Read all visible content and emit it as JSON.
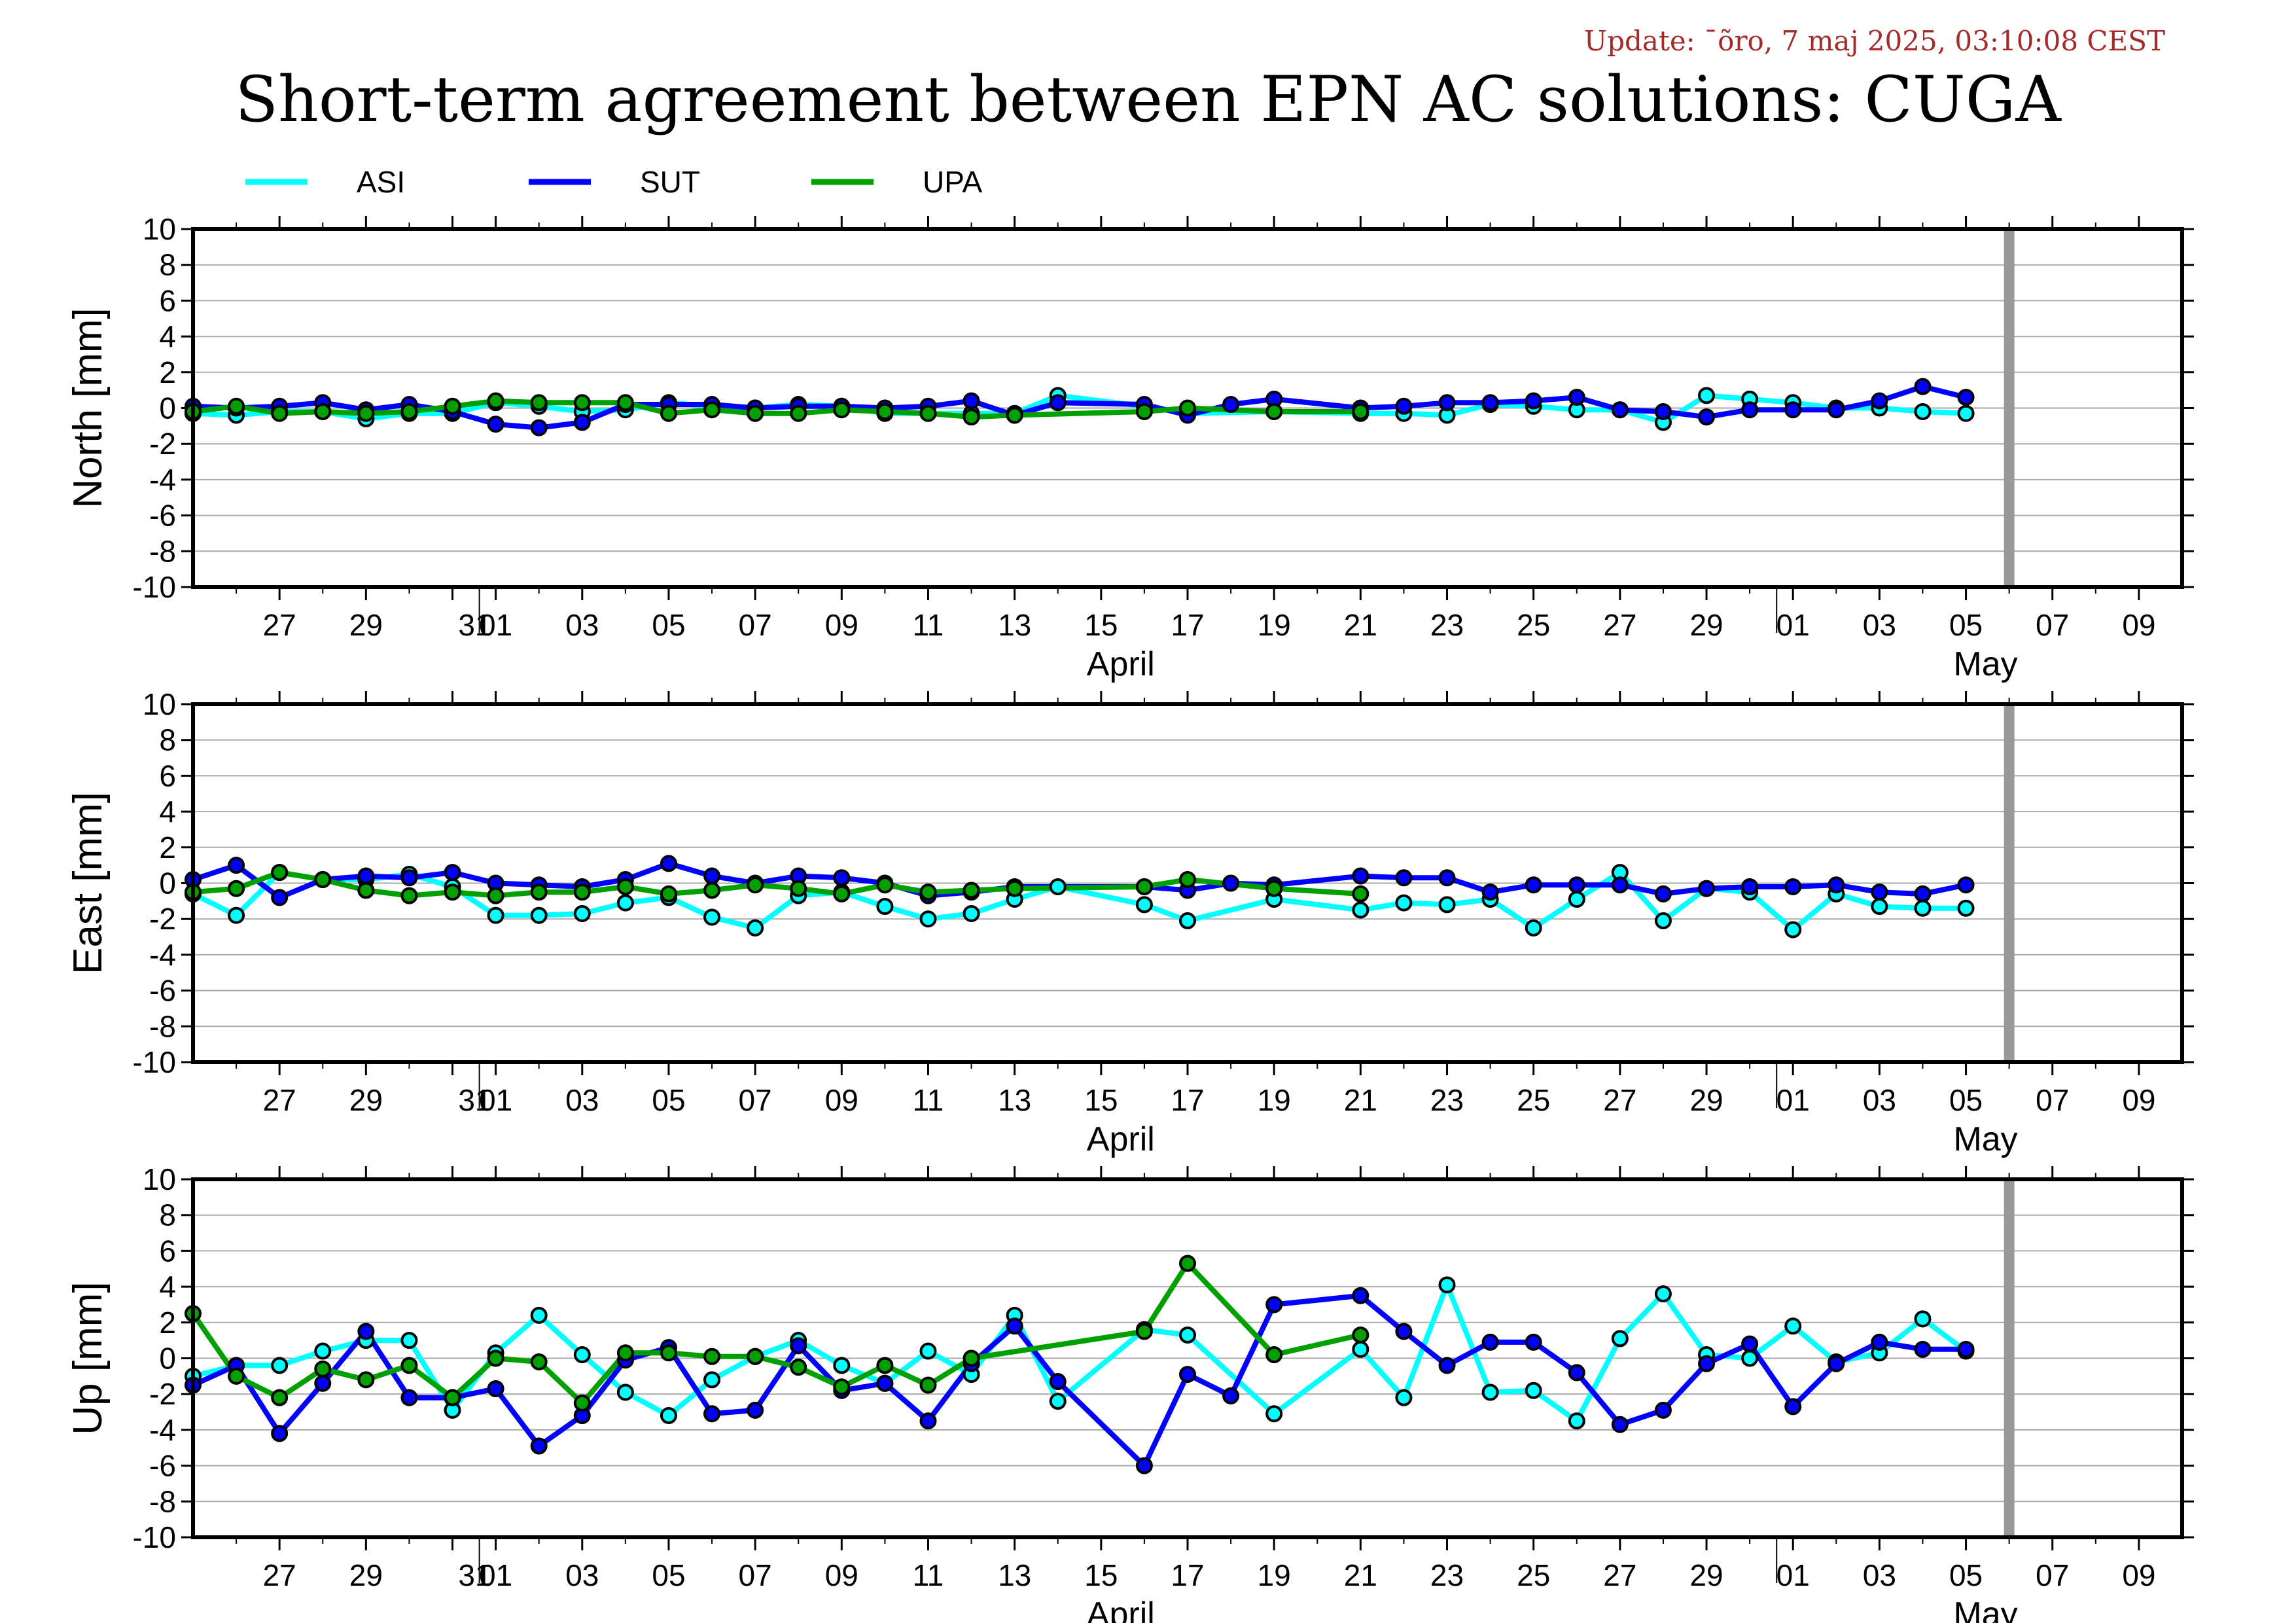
{
  "update_text": "Update: ¯õro, 7 maj 2025, 03:10:08 CEST",
  "title": "Short-term agreement between EPN AC solutions: CUGA",
  "legend": [
    {
      "name": "ASI",
      "color": "#00ffff"
    },
    {
      "name": "SUT",
      "color": "#0000ff"
    },
    {
      "name": "UPA",
      "color": "#00a000"
    }
  ],
  "chart_data": [
    {
      "type": "line",
      "ylabel": "North [mm]",
      "ylim": [
        -10,
        10
      ],
      "yticks": [
        "10",
        "8",
        "6",
        "4",
        "2",
        "0",
        "-2",
        "-4",
        "-6",
        "-8",
        "-10"
      ],
      "x_dates": {
        "ASI": [
          "2025-03-25",
          "2025-03-26",
          "2025-03-27",
          "2025-03-28",
          "2025-03-29",
          "2025-03-30",
          "2025-03-31",
          "2025-04-01",
          "2025-04-02",
          "2025-04-03",
          "2025-04-04",
          "2025-04-05",
          "2025-04-06",
          "2025-04-07",
          "2025-04-08",
          "2025-04-09",
          "2025-04-10",
          "2025-04-11",
          "2025-04-12",
          "2025-04-13",
          "2025-04-14",
          "2025-04-16",
          "2025-04-17",
          "2025-04-19",
          "2025-04-21",
          "2025-04-22",
          "2025-04-23",
          "2025-04-24",
          "2025-04-25",
          "2025-04-26",
          "2025-04-27",
          "2025-04-28",
          "2025-04-29",
          "2025-04-30",
          "2025-05-01",
          "2025-05-02",
          "2025-05-03",
          "2025-05-04",
          "2025-05-05"
        ],
        "SUT": [
          "2025-03-25",
          "2025-03-26",
          "2025-03-27",
          "2025-03-28",
          "2025-03-29",
          "2025-03-30",
          "2025-03-31",
          "2025-04-01",
          "2025-04-02",
          "2025-04-03",
          "2025-04-04",
          "2025-04-05",
          "2025-04-06",
          "2025-04-07",
          "2025-04-08",
          "2025-04-09",
          "2025-04-10",
          "2025-04-11",
          "2025-04-12",
          "2025-04-13",
          "2025-04-14",
          "2025-04-16",
          "2025-04-17",
          "2025-04-18",
          "2025-04-19",
          "2025-04-21",
          "2025-04-22",
          "2025-04-23",
          "2025-04-24",
          "2025-04-25",
          "2025-04-26",
          "2025-04-27",
          "2025-04-28",
          "2025-04-29",
          "2025-04-30",
          "2025-05-01",
          "2025-05-02",
          "2025-05-03",
          "2025-05-04",
          "2025-05-05"
        ],
        "UPA": [
          "2025-03-25",
          "2025-03-26",
          "2025-03-27",
          "2025-03-28",
          "2025-03-29",
          "2025-03-30",
          "2025-03-31",
          "2025-04-01",
          "2025-04-02",
          "2025-04-03",
          "2025-04-04",
          "2025-04-05",
          "2025-04-06",
          "2025-04-07",
          "2025-04-08",
          "2025-04-09",
          "2025-04-10",
          "2025-04-11",
          "2025-04-12",
          "2025-04-13",
          "2025-04-16",
          "2025-04-17",
          "2025-04-19",
          "2025-04-21"
        ]
      },
      "series": [
        {
          "name": "ASI",
          "values": [
            -0.3,
            -0.4,
            -0.2,
            -0.2,
            -0.6,
            -0.3,
            -0.3,
            0.3,
            0.1,
            -0.2,
            -0.1,
            0.3,
            0.1,
            0.0,
            0.2,
            0.1,
            -0.3,
            -0.3,
            -0.3,
            -0.3,
            0.7,
            0.1,
            -0.3,
            -0.2,
            -0.3,
            -0.3,
            -0.4,
            0.2,
            0.1,
            -0.1,
            -0.1,
            -0.8,
            0.7,
            0.5,
            0.3,
            0.0,
            0.0,
            -0.2,
            -0.3
          ]
        },
        {
          "name": "SUT",
          "values": [
            0.1,
            0.0,
            0.1,
            0.3,
            -0.1,
            0.2,
            -0.2,
            -0.9,
            -1.1,
            -0.8,
            0.2,
            0.2,
            0.2,
            0.0,
            0.1,
            0.1,
            0.0,
            0.1,
            0.4,
            -0.4,
            0.3,
            0.2,
            -0.4,
            0.2,
            0.5,
            0.0,
            0.1,
            0.3,
            0.3,
            0.4,
            0.6,
            -0.1,
            -0.2,
            -0.5,
            -0.1,
            -0.1,
            -0.1,
            0.4,
            1.2,
            0.6
          ]
        },
        {
          "name": "UPA",
          "values": [
            -0.2,
            0.1,
            -0.3,
            -0.2,
            -0.3,
            -0.2,
            0.1,
            0.4,
            0.3,
            0.3,
            0.3,
            -0.3,
            -0.1,
            -0.3,
            -0.3,
            -0.1,
            -0.2,
            -0.3,
            -0.5,
            -0.4,
            -0.2,
            0.0,
            -0.2,
            -0.2
          ]
        }
      ]
    },
    {
      "type": "line",
      "ylabel": "East [mm]",
      "ylim": [
        -10,
        10
      ],
      "yticks": [
        "10",
        "8",
        "6",
        "4",
        "2",
        "0",
        "-2",
        "-4",
        "-6",
        "-8",
        "-10"
      ],
      "x_dates": {
        "ASI": [
          "2025-03-25",
          "2025-03-26",
          "2025-03-27",
          "2025-03-28",
          "2025-03-29",
          "2025-03-30",
          "2025-03-31",
          "2025-04-01",
          "2025-04-02",
          "2025-04-03",
          "2025-04-04",
          "2025-04-05",
          "2025-04-06",
          "2025-04-07",
          "2025-04-08",
          "2025-04-09",
          "2025-04-10",
          "2025-04-11",
          "2025-04-12",
          "2025-04-13",
          "2025-04-14",
          "2025-04-16",
          "2025-04-17",
          "2025-04-19",
          "2025-04-21",
          "2025-04-22",
          "2025-04-23",
          "2025-04-24",
          "2025-04-25",
          "2025-04-26",
          "2025-04-27",
          "2025-04-28",
          "2025-04-29",
          "2025-04-30",
          "2025-05-01",
          "2025-05-02",
          "2025-05-03",
          "2025-05-04",
          "2025-05-05"
        ],
        "SUT": [
          "2025-03-25",
          "2025-03-26",
          "2025-03-27",
          "2025-03-28",
          "2025-03-29",
          "2025-03-30",
          "2025-03-31",
          "2025-04-01",
          "2025-04-02",
          "2025-04-03",
          "2025-04-04",
          "2025-04-05",
          "2025-04-06",
          "2025-04-07",
          "2025-04-08",
          "2025-04-09",
          "2025-04-10",
          "2025-04-11",
          "2025-04-12",
          "2025-04-13",
          "2025-04-16",
          "2025-04-17",
          "2025-04-18",
          "2025-04-19",
          "2025-04-21",
          "2025-04-22",
          "2025-04-23",
          "2025-04-24",
          "2025-04-25",
          "2025-04-26",
          "2025-04-27",
          "2025-04-28",
          "2025-04-29",
          "2025-04-30",
          "2025-05-01",
          "2025-05-02",
          "2025-05-03",
          "2025-05-04",
          "2025-05-05"
        ],
        "UPA": [
          "2025-03-25",
          "2025-03-26",
          "2025-03-27",
          "2025-03-28",
          "2025-03-29",
          "2025-03-30",
          "2025-03-31",
          "2025-04-01",
          "2025-04-02",
          "2025-04-03",
          "2025-04-04",
          "2025-04-05",
          "2025-04-06",
          "2025-04-07",
          "2025-04-08",
          "2025-04-09",
          "2025-04-10",
          "2025-04-11",
          "2025-04-12",
          "2025-04-13",
          "2025-04-16",
          "2025-04-17",
          "2025-04-19",
          "2025-04-21"
        ]
      },
      "series": [
        {
          "name": "ASI",
          "values": [
            -0.6,
            -1.8,
            0.6,
            0.2,
            0.2,
            0.5,
            -0.2,
            -1.8,
            -1.8,
            -1.7,
            -1.1,
            -0.8,
            -1.9,
            -2.5,
            -0.7,
            -0.5,
            -1.3,
            -2.0,
            -1.7,
            -0.9,
            -0.2,
            -1.2,
            -2.1,
            -0.9,
            -1.5,
            -1.1,
            -1.2,
            -0.9,
            -2.5,
            -0.9,
            0.6,
            -2.1,
            -0.3,
            -0.5,
            -2.6,
            -0.6,
            -1.3,
            -1.4,
            -1.4
          ]
        },
        {
          "name": "SUT",
          "values": [
            0.2,
            1.0,
            -0.8,
            0.2,
            0.4,
            0.3,
            0.6,
            0.0,
            -0.1,
            -0.2,
            0.2,
            1.1,
            0.4,
            0.0,
            0.4,
            0.3,
            0.0,
            -0.7,
            -0.5,
            -0.2,
            -0.2,
            -0.4,
            0.0,
            -0.1,
            0.4,
            0.3,
            0.3,
            -0.5,
            -0.1,
            -0.1,
            -0.1,
            -0.6,
            -0.3,
            -0.2,
            -0.2,
            -0.1,
            -0.5,
            -0.6,
            -0.1
          ]
        },
        {
          "name": "UPA",
          "values": [
            -0.5,
            -0.3,
            0.6,
            0.2,
            -0.4,
            -0.7,
            -0.5,
            -0.7,
            -0.5,
            -0.5,
            -0.2,
            -0.6,
            -0.4,
            -0.1,
            -0.3,
            -0.6,
            -0.1,
            -0.5,
            -0.4,
            -0.3,
            -0.2,
            0.2,
            -0.3,
            -0.6
          ]
        }
      ]
    },
    {
      "type": "line",
      "ylabel": "Up [mm]",
      "ylim": [
        -10,
        10
      ],
      "yticks": [
        "10",
        "8",
        "6",
        "4",
        "2",
        "0",
        "-2",
        "-4",
        "-6",
        "-8",
        "-10"
      ],
      "x_dates": {
        "ASI": [
          "2025-03-25",
          "2025-03-26",
          "2025-03-27",
          "2025-03-28",
          "2025-03-29",
          "2025-03-30",
          "2025-03-31",
          "2025-04-01",
          "2025-04-02",
          "2025-04-03",
          "2025-04-04",
          "2025-04-05",
          "2025-04-06",
          "2025-04-07",
          "2025-04-08",
          "2025-04-09",
          "2025-04-10",
          "2025-04-11",
          "2025-04-12",
          "2025-04-13",
          "2025-04-14",
          "2025-04-16",
          "2025-04-17",
          "2025-04-19",
          "2025-04-21",
          "2025-04-22",
          "2025-04-23",
          "2025-04-24",
          "2025-04-25",
          "2025-04-26",
          "2025-04-27",
          "2025-04-28",
          "2025-04-29",
          "2025-04-30",
          "2025-05-01",
          "2025-05-02",
          "2025-05-03",
          "2025-05-04",
          "2025-05-05"
        ],
        "SUT": [
          "2025-03-25",
          "2025-03-26",
          "2025-03-27",
          "2025-03-28",
          "2025-03-29",
          "2025-03-30",
          "2025-03-31",
          "2025-04-01",
          "2025-04-02",
          "2025-04-03",
          "2025-04-04",
          "2025-04-05",
          "2025-04-06",
          "2025-04-07",
          "2025-04-08",
          "2025-04-09",
          "2025-04-10",
          "2025-04-11",
          "2025-04-12",
          "2025-04-13",
          "2025-04-14",
          "2025-04-16",
          "2025-04-17",
          "2025-04-18",
          "2025-04-19",
          "2025-04-21",
          "2025-04-22",
          "2025-04-23",
          "2025-04-24",
          "2025-04-25",
          "2025-04-26",
          "2025-04-27",
          "2025-04-28",
          "2025-04-29",
          "2025-04-30",
          "2025-05-01",
          "2025-05-02",
          "2025-05-03",
          "2025-05-04",
          "2025-05-05"
        ],
        "UPA": [
          "2025-03-25",
          "2025-03-26",
          "2025-03-27",
          "2025-03-28",
          "2025-03-29",
          "2025-03-30",
          "2025-03-31",
          "2025-04-01",
          "2025-04-02",
          "2025-04-03",
          "2025-04-04",
          "2025-04-05",
          "2025-04-06",
          "2025-04-07",
          "2025-04-08",
          "2025-04-09",
          "2025-04-10",
          "2025-04-11",
          "2025-04-12",
          "2025-04-16",
          "2025-04-17",
          "2025-04-19",
          "2025-04-21"
        ]
      },
      "series": [
        {
          "name": "ASI",
          "values": [
            -1.0,
            -0.4,
            -0.4,
            0.4,
            1.0,
            1.0,
            -2.9,
            0.3,
            2.4,
            0.2,
            -1.9,
            -3.2,
            -1.2,
            0.1,
            1.0,
            -0.4,
            -1.4,
            0.4,
            -0.9,
            2.4,
            -2.4,
            1.6,
            1.3,
            -3.1,
            0.5,
            -2.2,
            4.1,
            -1.9,
            -1.8,
            -3.5,
            1.1,
            3.6,
            0.2,
            0.0,
            1.8,
            -0.2,
            0.3,
            2.2,
            0.4
          ]
        },
        {
          "name": "SUT",
          "values": [
            -1.5,
            -0.4,
            -4.2,
            -1.4,
            1.5,
            -2.2,
            -2.2,
            -1.7,
            -4.9,
            -3.2,
            -0.1,
            0.6,
            -3.1,
            -2.9,
            0.7,
            -1.8,
            -1.4,
            -3.5,
            -0.3,
            1.8,
            -1.3,
            -6.0,
            -0.9,
            -2.1,
            3.0,
            3.5,
            1.5,
            -0.4,
            0.9,
            0.9,
            -0.8,
            -3.7,
            -2.9,
            -0.3,
            0.8,
            -2.7,
            -0.3,
            0.9,
            0.5,
            0.5
          ]
        },
        {
          "name": "UPA",
          "values": [
            2.5,
            -1.0,
            -2.2,
            -0.6,
            -1.2,
            -0.4,
            -2.2,
            0.0,
            -0.2,
            -2.5,
            0.3,
            0.3,
            0.1,
            0.1,
            -0.5,
            -1.6,
            -0.4,
            -1.5,
            0.0,
            1.5,
            5.3,
            0.2,
            1.3
          ]
        }
      ]
    }
  ],
  "x_axis": {
    "range": [
      "2025-03-25",
      "2025-05-10"
    ],
    "ticks": [
      {
        "date": "2025-03-27",
        "label": "27"
      },
      {
        "date": "2025-03-29",
        "label": "29"
      },
      {
        "date": "2025-03-31",
        "label": "31"
      },
      {
        "date": "2025-04-01",
        "label": "01"
      },
      {
        "date": "2025-04-03",
        "label": "03"
      },
      {
        "date": "2025-04-05",
        "label": "05"
      },
      {
        "date": "2025-04-07",
        "label": "07"
      },
      {
        "date": "2025-04-09",
        "label": "09"
      },
      {
        "date": "2025-04-11",
        "label": "11"
      },
      {
        "date": "2025-04-13",
        "label": "13"
      },
      {
        "date": "2025-04-15",
        "label": "15"
      },
      {
        "date": "2025-04-17",
        "label": "17"
      },
      {
        "date": "2025-04-19",
        "label": "19"
      },
      {
        "date": "2025-04-21",
        "label": "21"
      },
      {
        "date": "2025-04-23",
        "label": "23"
      },
      {
        "date": "2025-04-25",
        "label": "25"
      },
      {
        "date": "2025-04-27",
        "label": "27"
      },
      {
        "date": "2025-04-29",
        "label": "29"
      },
      {
        "date": "2025-05-01",
        "label": "01"
      },
      {
        "date": "2025-05-03",
        "label": "03"
      },
      {
        "date": "2025-05-05",
        "label": "05"
      },
      {
        "date": "2025-05-07",
        "label": "07"
      },
      {
        "date": "2025-05-09",
        "label": "09"
      }
    ],
    "months": [
      {
        "date": "2025-04-15",
        "label": "April"
      },
      {
        "date": "2025-05-05",
        "label": "May"
      }
    ],
    "month_boundaries": [
      "2025-04-01",
      "2025-05-01"
    ],
    "current_date_marker": "2025-05-06"
  }
}
